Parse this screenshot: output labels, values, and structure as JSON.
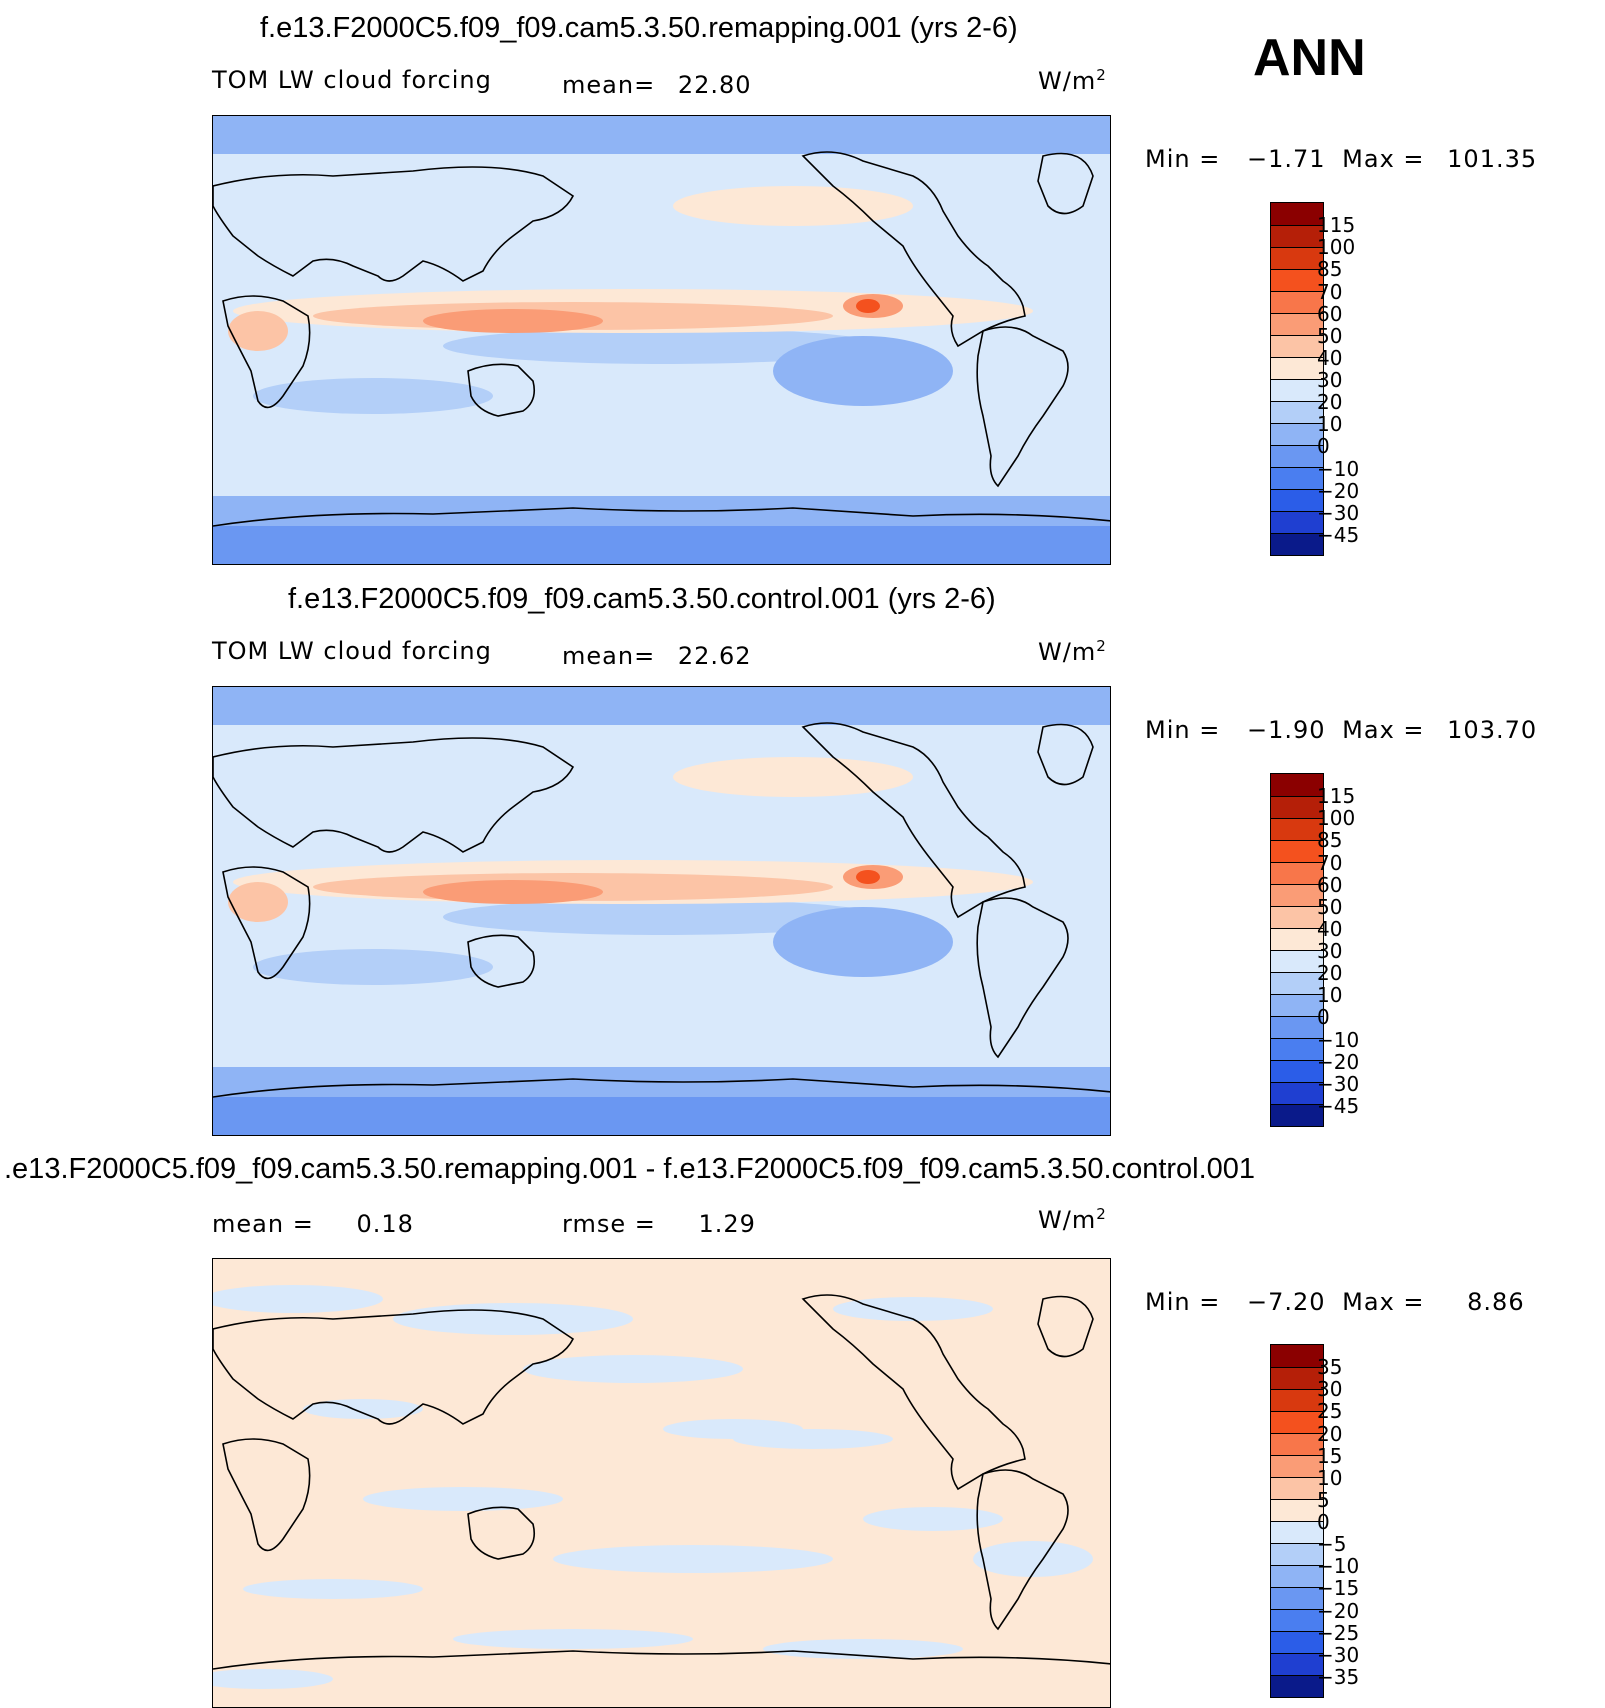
{
  "season": "ANN",
  "units_prefix": "W/m",
  "units_exp": "2",
  "panels": [
    {
      "title": "f.e13.F2000C5.f09_f09.cam5.3.50.remapping.001 (yrs 2-6)",
      "field": "TOM LW cloud forcing",
      "stat_label": "mean=",
      "stat_value": "22.80",
      "minmax_min_label": "Min =",
      "minmax_min": "−1.71",
      "minmax_max_label": "Max =",
      "minmax_max": "101.35",
      "palette": "abs"
    },
    {
      "title": "f.e13.F2000C5.f09_f09.cam5.3.50.control.001 (yrs 2-6)",
      "field": "TOM LW cloud forcing",
      "stat_label": "mean=",
      "stat_value": "22.62",
      "minmax_min_label": "Min =",
      "minmax_min": "−1.90",
      "minmax_max_label": "Max =",
      "minmax_max": "103.70",
      "palette": "abs"
    },
    {
      "title": ".e13.F2000C5.f09_f09.cam5.3.50.remapping.001 - f.e13.F2000C5.f09_f09.cam5.3.50.control.001",
      "field": "mean =",
      "field_value": "0.18",
      "stat_label": "rmse =",
      "stat_value": "1.29",
      "minmax_min_label": "Min =",
      "minmax_min": "−7.20",
      "minmax_max_label": "Max =",
      "minmax_max": "8.86",
      "palette": "diff"
    }
  ],
  "colorbar_abs": {
    "labels": [
      "115",
      "100",
      "85",
      "70",
      "60",
      "50",
      "40",
      "30",
      "20",
      "10",
      "0",
      "−10",
      "−20",
      "−30",
      "−45"
    ],
    "colors": [
      "#8b0000",
      "#b51f08",
      "#d8390f",
      "#f4511e",
      "#f8764a",
      "#fa9c76",
      "#fcc4a6",
      "#fde8d6",
      "#d9e9fb",
      "#b3cff8",
      "#8fb4f5",
      "#6a97f2",
      "#4a7ef0",
      "#2b5de8",
      "#1f3fd1",
      "#0a1a8a"
    ]
  },
  "colorbar_diff": {
    "labels": [
      "35",
      "30",
      "25",
      "20",
      "15",
      "10",
      "5",
      "0",
      "−5",
      "−10",
      "−15",
      "−20",
      "−25",
      "−30",
      "−35"
    ],
    "colors": [
      "#8b0000",
      "#b51f08",
      "#d8390f",
      "#f4511e",
      "#f8764a",
      "#fa9c76",
      "#fcc4a6",
      "#fde8d6",
      "#d9e9fb",
      "#b3cff8",
      "#8fb4f5",
      "#6a97f2",
      "#4a7ef0",
      "#2b5de8",
      "#1f3fd1",
      "#0a1a8a"
    ]
  },
  "palette": {
    "land_line": "#000000",
    "c_polar": "#6a97f2",
    "c_mid": "#8fb4f5",
    "c_light": "#b3cff8",
    "c_pale": "#d9e9fb",
    "c_cream": "#fde8d6",
    "c_warm1": "#fcc4a6",
    "c_warm2": "#fa9c76",
    "c_warm3": "#f4511e"
  }
}
